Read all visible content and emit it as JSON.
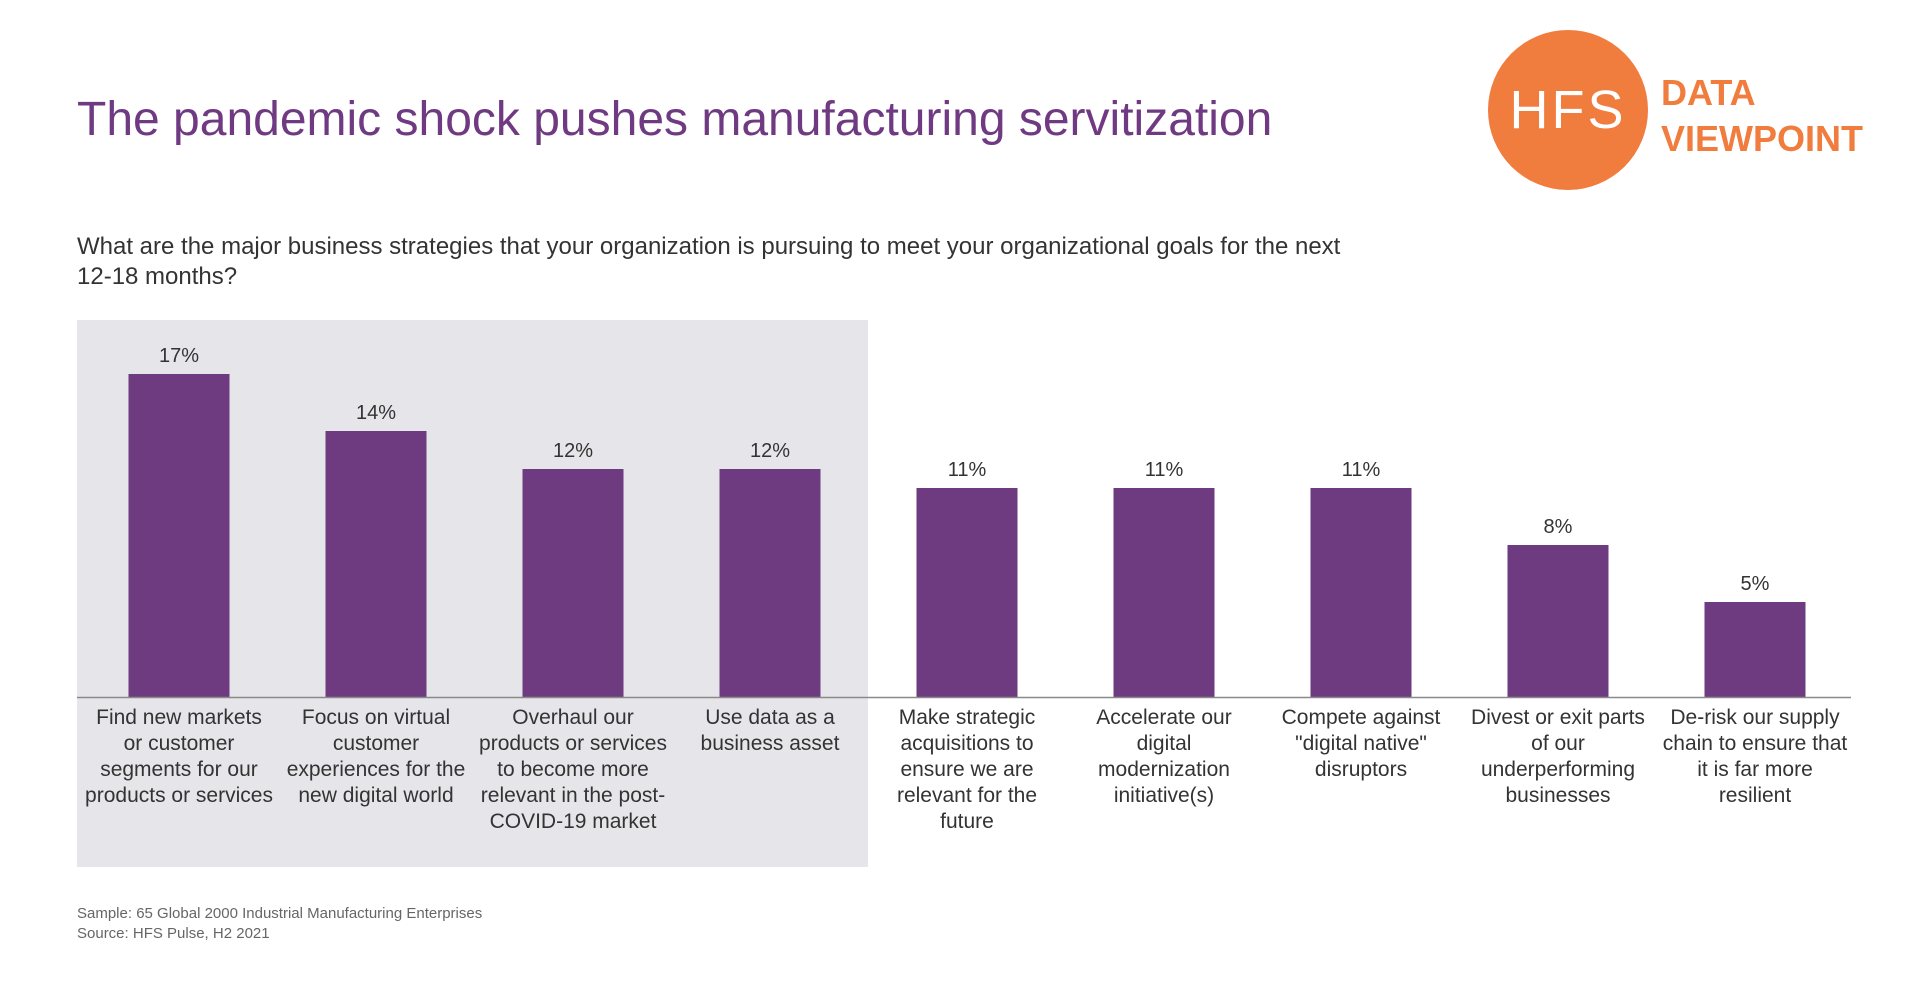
{
  "header": {
    "title": "The pandemic shock pushes manufacturing servitization",
    "question": "What are the major business strategies that your organization is pursuing to meet your organizational goals for the next 12-18 months?"
  },
  "logo": {
    "circle_text": "HFS",
    "line1": "DATA",
    "line2": "VIEWPOINT",
    "color": "#f07c3e"
  },
  "chart_data": {
    "type": "bar",
    "categories": [
      "Find new markets or customer segments for our products or services",
      "Focus on virtual customer experiences for the new digital world",
      "Overhaul our products or services to become more relevant in the post-COVID-19 market",
      "Use data as a business asset",
      "Make strategic acquisitions to ensure we are relevant for the future",
      "Accelerate our digital modernization initiative(s)",
      "Compete against \"digital native\" disruptors",
      "Divest or exit parts of our underperforming businesses",
      "De-risk our supply chain to ensure that it is far more resilient"
    ],
    "values": [
      17,
      14,
      12,
      12,
      11,
      11,
      11,
      8,
      5
    ],
    "data_labels": [
      "17%",
      "14%",
      "12%",
      "12%",
      "11%",
      "11%",
      "11%",
      "8%",
      "5%"
    ],
    "ylim": [
      0,
      17
    ],
    "highlighted_count": 4,
    "bar_color": "#6e3b80",
    "highlight_color": "#e6e6ea",
    "grid": false
  },
  "footer": {
    "sample": "Sample: 65 Global 2000 Industrial Manufacturing Enterprises",
    "source": "Source: HFS Pulse, H2 2021"
  }
}
